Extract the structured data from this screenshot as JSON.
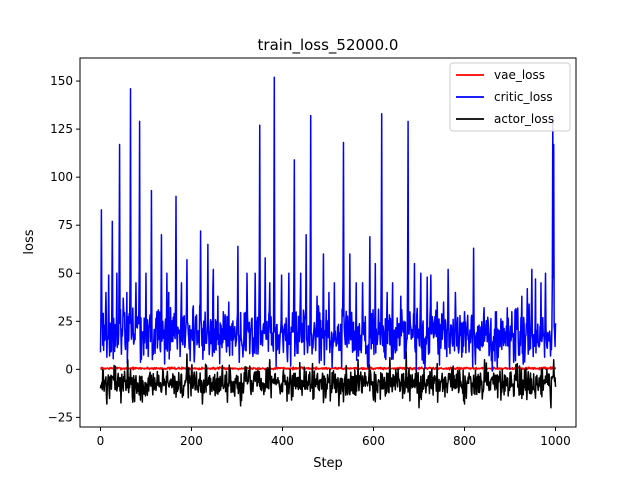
{
  "chart_data": {
    "type": "line",
    "title": "train_loss_52000.0",
    "xlabel": "Step",
    "ylabel": "loss",
    "xlim": [
      -45,
      1045
    ],
    "ylim": [
      -30,
      162
    ],
    "xticks": [
      0,
      200,
      400,
      600,
      800,
      1000
    ],
    "yticks": [
      -25,
      0,
      25,
      50,
      75,
      100,
      125,
      150
    ],
    "xtick_labels": [
      "0",
      "200",
      "400",
      "600",
      "800",
      "1000"
    ],
    "ytick_labels": [
      "−25",
      "0",
      "25",
      "50",
      "75",
      "100",
      "125",
      "150"
    ],
    "legend_position": "top-right",
    "grid": false,
    "series": [
      {
        "name": "vae_loss",
        "color": "#ff0000",
        "base": 0.5,
        "noise": 0.3,
        "seed": 7,
        "spikes": []
      },
      {
        "name": "critic_loss",
        "color": "#0000ff",
        "base": 17,
        "noise": 7,
        "seed": 42,
        "spikes": [
          [
            2,
            83
          ],
          [
            12,
            40
          ],
          [
            18,
            49
          ],
          [
            26,
            77
          ],
          [
            36,
            50
          ],
          [
            42,
            117
          ],
          [
            50,
            37
          ],
          [
            58,
            40
          ],
          [
            66,
            146
          ],
          [
            78,
            45
          ],
          [
            86,
            129
          ],
          [
            100,
            50
          ],
          [
            112,
            93
          ],
          [
            124,
            30
          ],
          [
            134,
            70
          ],
          [
            146,
            50
          ],
          [
            150,
            40
          ],
          [
            166,
            90
          ],
          [
            178,
            45
          ],
          [
            190,
            57
          ],
          [
            204,
            33
          ],
          [
            220,
            72
          ],
          [
            236,
            65
          ],
          [
            248,
            52
          ],
          [
            258,
            38
          ],
          [
            270,
            30
          ],
          [
            282,
            35
          ],
          [
            302,
            64
          ],
          [
            322,
            50
          ],
          [
            340,
            50
          ],
          [
            350,
            127
          ],
          [
            362,
            58
          ],
          [
            372,
            45
          ],
          [
            382,
            152
          ],
          [
            398,
            49
          ],
          [
            414,
            50
          ],
          [
            426,
            109
          ],
          [
            440,
            50
          ],
          [
            452,
            70
          ],
          [
            462,
            132
          ],
          [
            476,
            38
          ],
          [
            490,
            60
          ],
          [
            502,
            40
          ],
          [
            514,
            45
          ],
          [
            534,
            118
          ],
          [
            548,
            60
          ],
          [
            562,
            45
          ],
          [
            576,
            45
          ],
          [
            592,
            69
          ],
          [
            604,
            55
          ],
          [
            618,
            133
          ],
          [
            630,
            40
          ],
          [
            642,
            45
          ],
          [
            660,
            38
          ],
          [
            676,
            129
          ],
          [
            690,
            55
          ],
          [
            704,
            50
          ],
          [
            718,
            48
          ],
          [
            726,
            49
          ],
          [
            740,
            35
          ],
          [
            754,
            35
          ],
          [
            764,
            52
          ],
          [
            780,
            40
          ],
          [
            790,
            28
          ],
          [
            800,
            30
          ],
          [
            820,
            63
          ],
          [
            836,
            22
          ],
          [
            852,
            25
          ],
          [
            870,
            30
          ],
          [
            884,
            25
          ],
          [
            894,
            32
          ],
          [
            904,
            30
          ],
          [
            914,
            30
          ],
          [
            926,
            38
          ],
          [
            938,
            42
          ],
          [
            948,
            52
          ],
          [
            956,
            47
          ],
          [
            968,
            45
          ],
          [
            978,
            50
          ],
          [
            994,
            131
          ],
          [
            996,
            117
          ]
        ]
      },
      {
        "name": "actor_loss",
        "color": "#000000",
        "base": -7,
        "noise": 4,
        "seed": 99,
        "spikes": [
          [
            14,
            -18
          ],
          [
            30,
            2
          ],
          [
            60,
            5
          ],
          [
            88,
            -16
          ],
          [
            140,
            -5
          ],
          [
            190,
            8
          ],
          [
            224,
            -18
          ],
          [
            268,
            2
          ],
          [
            308,
            -19
          ],
          [
            372,
            5
          ],
          [
            420,
            -16
          ],
          [
            466,
            3
          ],
          [
            524,
            -19
          ],
          [
            566,
            5
          ],
          [
            600,
            -16
          ],
          [
            636,
            6
          ],
          [
            672,
            9
          ],
          [
            700,
            -20
          ],
          [
            740,
            3
          ],
          [
            800,
            -18
          ],
          [
            844,
            5
          ],
          [
            880,
            -16
          ],
          [
            916,
            3
          ],
          [
            956,
            -15
          ],
          [
            990,
            -20
          ],
          [
            996,
            5
          ]
        ]
      }
    ]
  }
}
